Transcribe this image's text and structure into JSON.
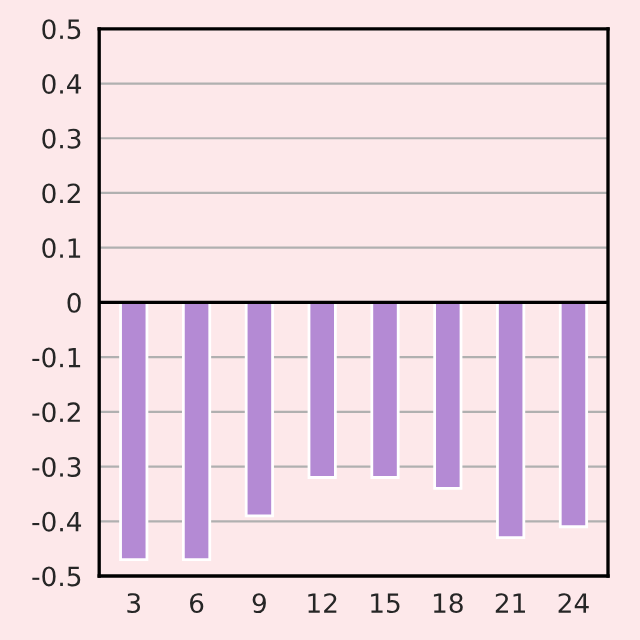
{
  "chart_data": {
    "type": "bar",
    "categories": [
      "3",
      "6",
      "9",
      "12",
      "15",
      "18",
      "21",
      "24"
    ],
    "values": [
      -0.47,
      -0.47,
      -0.39,
      -0.32,
      -0.32,
      -0.34,
      -0.43,
      -0.41
    ],
    "color": "#b48ad4",
    "ylim": [
      -0.5,
      0.5
    ],
    "yticks": [
      -0.5,
      -0.4,
      -0.3,
      -0.2,
      -0.1,
      0,
      0.1,
      0.2,
      0.3,
      0.4,
      0.5
    ],
    "grid": "y"
  }
}
